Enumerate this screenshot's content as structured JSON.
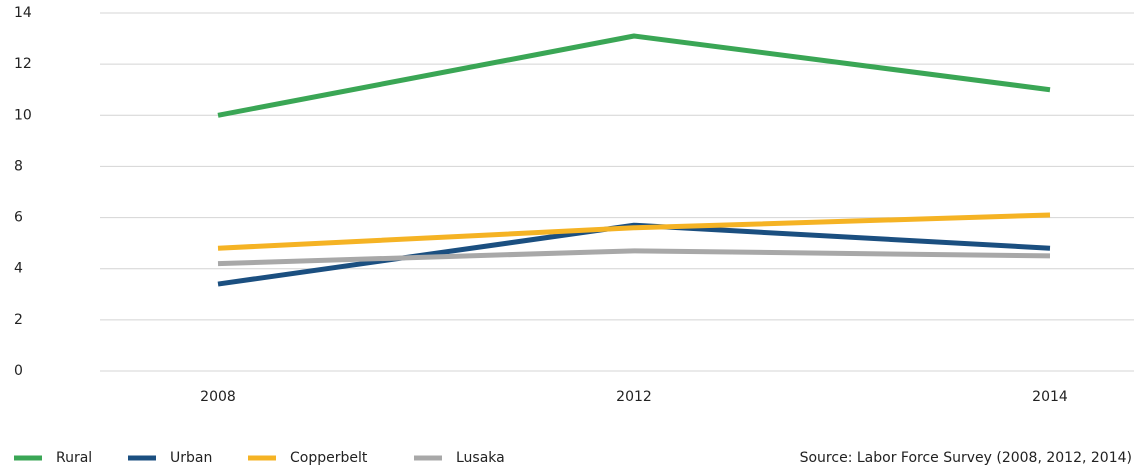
{
  "chart_data": {
    "type": "line",
    "categories": [
      "2008",
      "2012",
      "2014"
    ],
    "series": [
      {
        "name": "Rural",
        "color": "#3aa655",
        "values": [
          10,
          13.1,
          11
        ]
      },
      {
        "name": "Urban",
        "color": "#1b4f80",
        "values": [
          3.4,
          5.7,
          4.8
        ]
      },
      {
        "name": "Copperbelt",
        "color": "#f5b324",
        "values": [
          4.8,
          5.6,
          6.1
        ]
      },
      {
        "name": "Lusaka",
        "color": "#a8a8a8",
        "values": [
          4.2,
          4.7,
          4.5
        ]
      }
    ],
    "ylim": [
      0,
      14
    ],
    "yticks": [
      0,
      2,
      4,
      6,
      8,
      10,
      12,
      14
    ],
    "grid": true,
    "legend": "bottom",
    "source": "Source: Labor Force Survey (2008, 2012, 2014)"
  }
}
